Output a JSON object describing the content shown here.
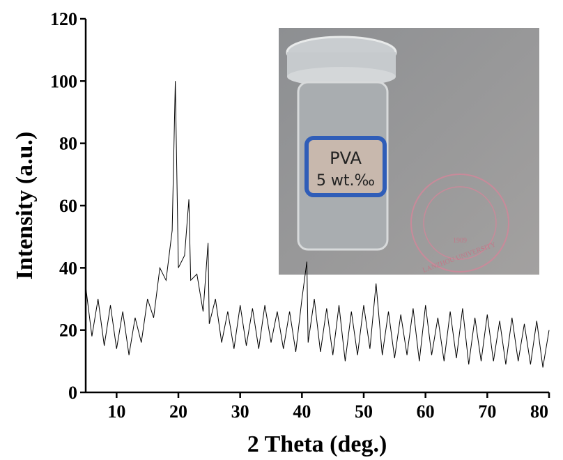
{
  "chart_data": {
    "type": "line",
    "xlabel": "2 Theta (deg.)",
    "ylabel": "Intensity (a.u.)",
    "x": [
      5,
      6,
      7,
      8,
      9,
      10,
      11,
      12,
      13,
      14,
      15,
      16,
      17,
      18,
      19,
      19.5,
      20,
      21,
      21.7,
      22,
      23,
      24,
      24.8,
      25,
      26,
      27,
      28,
      29,
      30,
      31,
      32,
      33,
      34,
      35,
      36,
      37,
      38,
      39,
      40,
      40.8,
      41,
      42,
      43,
      44,
      45,
      46,
      47,
      48,
      49,
      50,
      51,
      52,
      53,
      54,
      55,
      56,
      57,
      58,
      59,
      60,
      61,
      62,
      63,
      64,
      65,
      66,
      67,
      68,
      69,
      70,
      71,
      72,
      73,
      74,
      75,
      76,
      77,
      78,
      79,
      80
    ],
    "series": [
      {
        "color": "#000000",
        "values": [
          34,
          18,
          30,
          15,
          28,
          14,
          26,
          12,
          24,
          16,
          30,
          24,
          40,
          36,
          52,
          100,
          40,
          44,
          62,
          36,
          38,
          26,
          48,
          22,
          30,
          16,
          26,
          14,
          28,
          15,
          27,
          14,
          28,
          16,
          26,
          14,
          26,
          13,
          30,
          42,
          16,
          30,
          13,
          27,
          12,
          28,
          10,
          26,
          12,
          28,
          14,
          35,
          12,
          26,
          11,
          25,
          12,
          27,
          10,
          28,
          12,
          24,
          10,
          26,
          11,
          27,
          9,
          24,
          10,
          25,
          10,
          23,
          9,
          24,
          10,
          22,
          9,
          23,
          8,
          20
        ]
      }
    ],
    "xlim": [
      5,
      80
    ],
    "xticks": [
      10,
      20,
      30,
      40,
      50,
      60,
      70,
      80
    ],
    "ylim": [
      0,
      120
    ],
    "yticks": [
      0,
      20,
      40,
      60,
      80,
      100,
      120
    ]
  },
  "inset": {
    "label": [
      "PVA",
      "5 wt.‰"
    ],
    "stamp": [
      "LANZHOU UNIVERSITY",
      "1909"
    ]
  }
}
